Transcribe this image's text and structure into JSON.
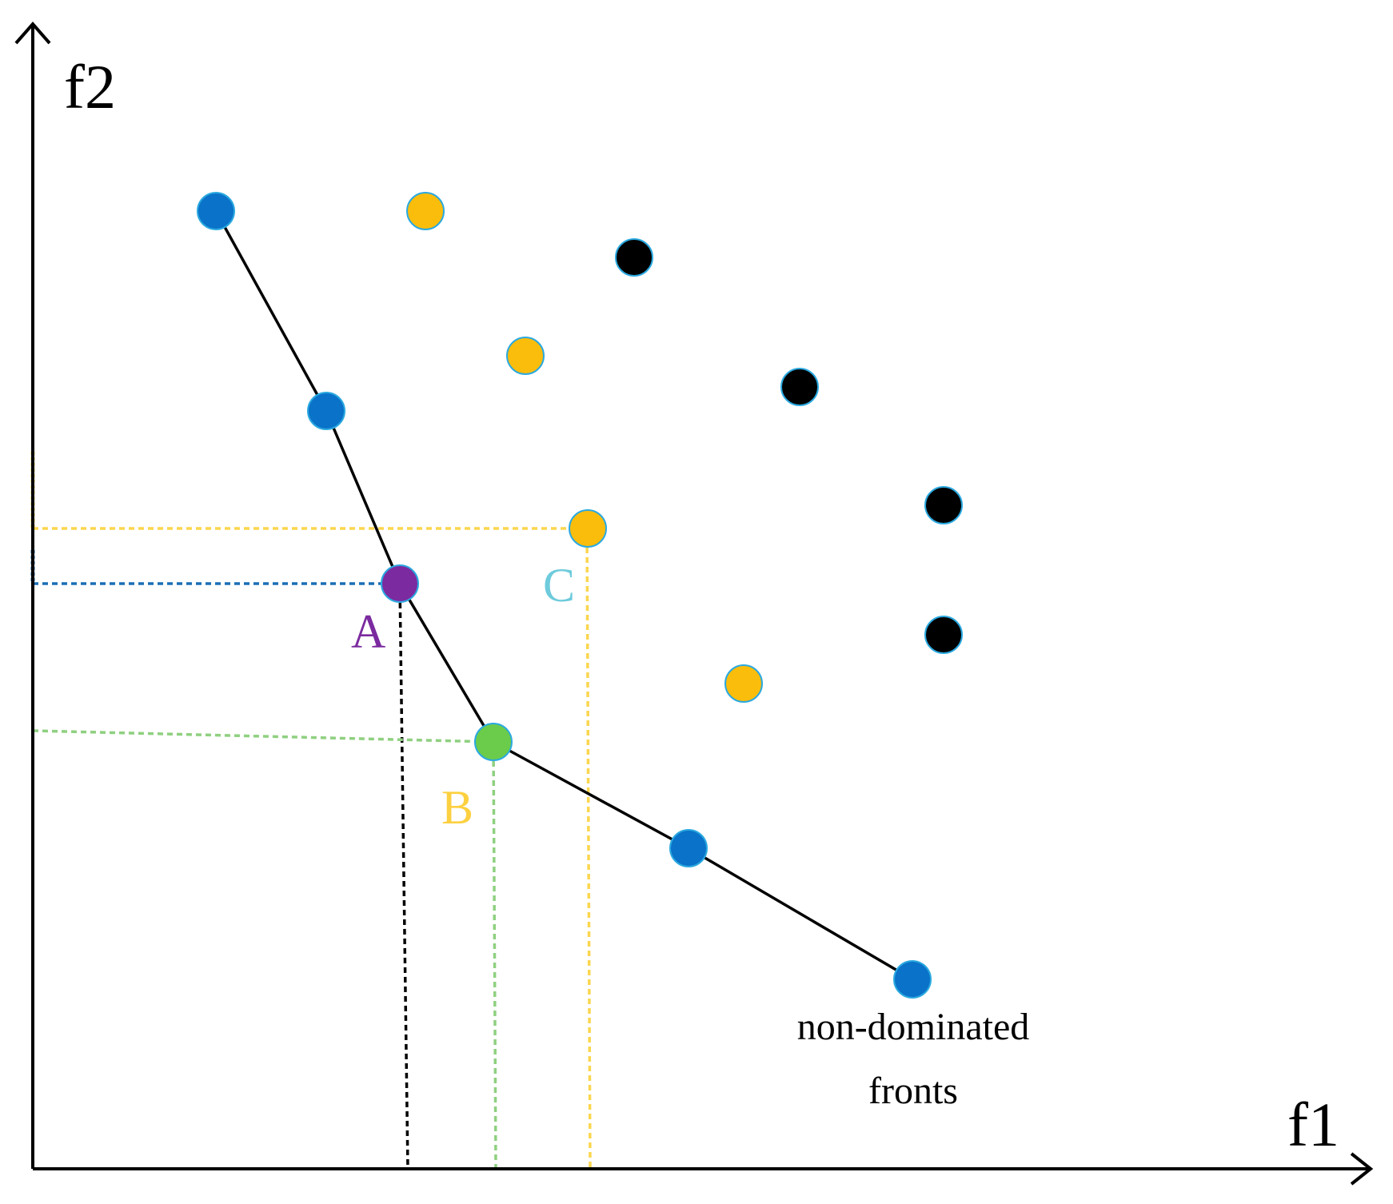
{
  "axes": {
    "x_label": "f1",
    "y_label": "f2"
  },
  "point_labels": {
    "A": "A",
    "B": "B",
    "C": "C"
  },
  "caption": {
    "line1": "non-dominated",
    "line2": "fronts"
  },
  "colors": {
    "front1": "#0a72c8",
    "front2": "#fbbd0b",
    "front3": "#000000",
    "point_a": "#7b2a9f",
    "point_b": "#6acc4a",
    "label_a": "#7b2a9f",
    "label_b": "#fdd040",
    "label_c": "#6ecbdc",
    "guide_a_h": "#1a6fb6",
    "guide_a_v": "#000000",
    "guide_b": "#8fd080",
    "guide_c": "#fbd64e",
    "marker_edge": "#2ba9e0"
  }
}
